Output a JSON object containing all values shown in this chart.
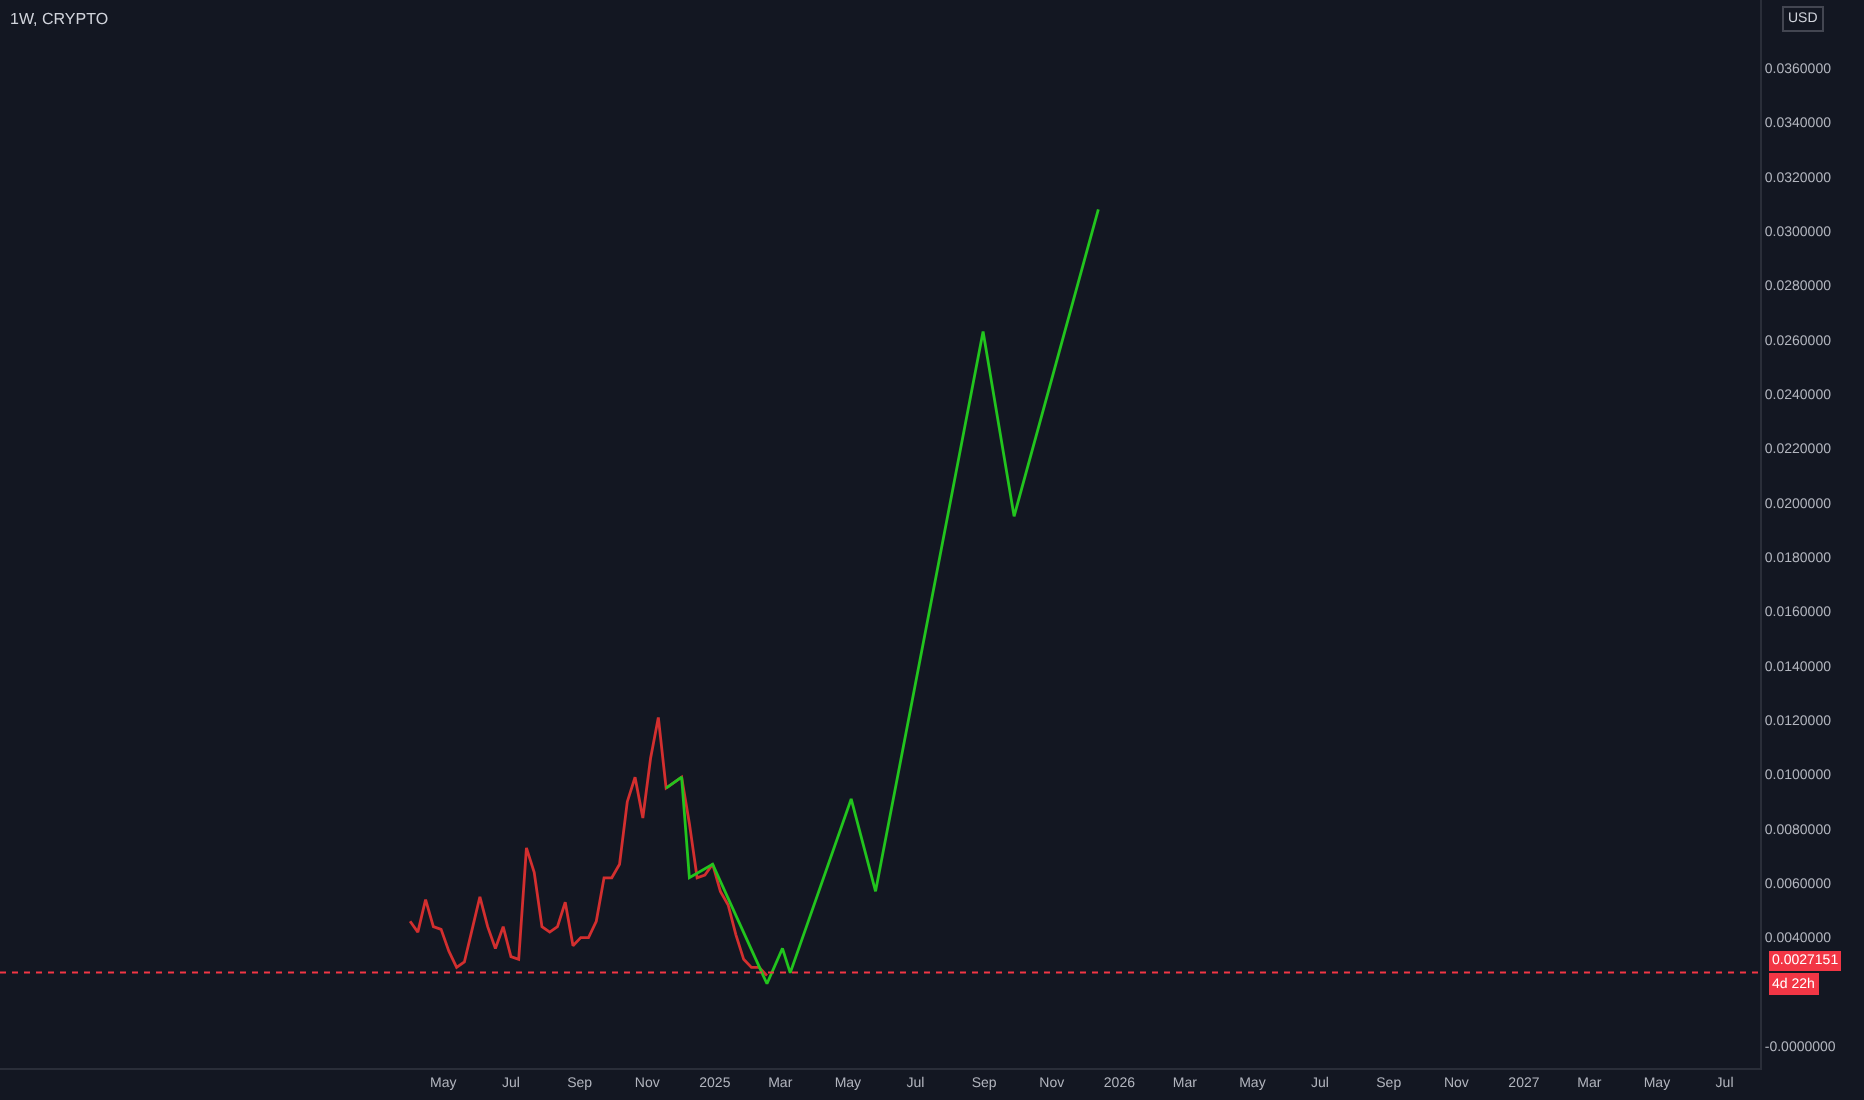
{
  "chart_data": {
    "type": "line",
    "title": "1W, CRYPTO",
    "series": [
      {
        "color": "#d32f2f",
        "x": [
          "2024-04-01",
          "2024-04-08",
          "2024-04-15",
          "2024-04-22",
          "2024-04-29",
          "2024-05-06",
          "2024-05-13",
          "2024-05-20",
          "2024-05-27",
          "2024-06-03",
          "2024-06-10",
          "2024-06-17",
          "2024-06-24",
          "2024-07-01",
          "2024-07-08",
          "2024-07-15",
          "2024-07-22",
          "2024-07-29",
          "2024-08-05",
          "2024-08-12",
          "2024-08-19",
          "2024-08-26",
          "2024-09-02",
          "2024-09-09",
          "2024-09-16",
          "2024-09-23",
          "2024-09-30",
          "2024-10-07",
          "2024-10-14",
          "2024-10-21",
          "2024-10-28",
          "2024-11-04",
          "2024-11-11",
          "2024-11-18",
          "2024-11-25",
          "2024-12-02",
          "2024-12-09",
          "2024-12-16",
          "2024-12-23",
          "2024-12-30",
          "2025-01-06",
          "2025-01-13",
          "2025-01-20",
          "2025-01-27",
          "2025-02-03",
          "2025-02-10",
          "2025-02-17"
        ],
        "values": [
          0.0046,
          0.0042,
          0.0054,
          0.0044,
          0.0043,
          0.0035,
          0.0029,
          0.0031,
          0.0043,
          0.0055,
          0.0044,
          0.0036,
          0.0044,
          0.0033,
          0.0032,
          0.0073,
          0.0064,
          0.0044,
          0.0042,
          0.0044,
          0.0053,
          0.0037,
          0.004,
          0.004,
          0.0046,
          0.0062,
          0.0062,
          0.0067,
          0.009,
          0.0099,
          0.0084,
          0.0106,
          0.0121,
          0.0095,
          0.0097,
          0.0099,
          0.0082,
          0.0062,
          0.0063,
          0.0067,
          0.0057,
          0.0052,
          0.0041,
          0.0032,
          0.0029,
          0.0029,
          0.0026
        ]
      },
      {
        "color": "#22c51e",
        "x": [
          "2024-11-18",
          "2024-12-02",
          "2024-12-09",
          "2024-12-30",
          "2025-02-17",
          "2025-03-03",
          "2025-03-10",
          "2025-05-04",
          "2025-05-26",
          "2025-08-31",
          "2025-09-28",
          "2025-12-13"
        ],
        "values": [
          0.0095,
          0.0099,
          0.0062,
          0.0067,
          0.0023,
          0.0036,
          0.0027,
          0.0091,
          0.0057,
          0.0263,
          0.0195,
          0.0308
        ]
      }
    ],
    "xlim": [
      "2023-03-28",
      "2027-08-02"
    ],
    "xticks": [
      {
        "value": "2024-05-01",
        "label": "May"
      },
      {
        "value": "2024-07-01",
        "label": "Jul"
      },
      {
        "value": "2024-09-01",
        "label": "Sep"
      },
      {
        "value": "2024-11-01",
        "label": "Nov"
      },
      {
        "value": "2025-01-01",
        "label": "2025"
      },
      {
        "value": "2025-03-01",
        "label": "Mar"
      },
      {
        "value": "2025-05-01",
        "label": "May"
      },
      {
        "value": "2025-07-01",
        "label": "Jul"
      },
      {
        "value": "2025-09-01",
        "label": "Sep"
      },
      {
        "value": "2025-11-01",
        "label": "Nov"
      },
      {
        "value": "2026-01-01",
        "label": "2026"
      },
      {
        "value": "2026-03-01",
        "label": "Mar"
      },
      {
        "value": "2026-05-01",
        "label": "May"
      },
      {
        "value": "2026-07-01",
        "label": "Jul"
      },
      {
        "value": "2026-09-01",
        "label": "Sep"
      },
      {
        "value": "2026-11-01",
        "label": "Nov"
      },
      {
        "value": "2027-01-01",
        "label": "2027"
      },
      {
        "value": "2027-03-01",
        "label": "Mar"
      },
      {
        "value": "2027-05-01",
        "label": "May"
      },
      {
        "value": "2027-07-01",
        "label": "Jul"
      }
    ],
    "ylim": [
      -0.0008,
      0.0385
    ],
    "yticks": [
      {
        "value": 0,
        "label": "-0.0000000"
      },
      {
        "value": 0.004,
        "label": "0.0040000"
      },
      {
        "value": 0.006,
        "label": "0.0060000"
      },
      {
        "value": 0.008,
        "label": "0.0080000"
      },
      {
        "value": 0.01,
        "label": "0.0100000"
      },
      {
        "value": 0.012,
        "label": "0.0120000"
      },
      {
        "value": 0.014,
        "label": "0.0140000"
      },
      {
        "value": 0.016,
        "label": "0.0160000"
      },
      {
        "value": 0.018,
        "label": "0.0180000"
      },
      {
        "value": 0.02,
        "label": "0.0200000"
      },
      {
        "value": 0.022,
        "label": "0.0220000"
      },
      {
        "value": 0.024,
        "label": "0.0240000"
      },
      {
        "value": 0.026,
        "label": "0.0260000"
      },
      {
        "value": 0.028,
        "label": "0.0280000"
      },
      {
        "value": 0.03,
        "label": "0.0300000"
      },
      {
        "value": 0.032,
        "label": "0.0320000"
      },
      {
        "value": 0.034,
        "label": "0.0340000"
      },
      {
        "value": 0.036,
        "label": "0.0360000"
      }
    ],
    "ref_lines": [
      {
        "axis": "y",
        "value": 0.0027151,
        "label": "0.0027151",
        "color": "#f23645",
        "line_style": "dotted"
      }
    ],
    "annotations": [
      "USD",
      "4d 22h"
    ],
    "grid": false,
    "marker": "none",
    "line_style": "solid"
  }
}
